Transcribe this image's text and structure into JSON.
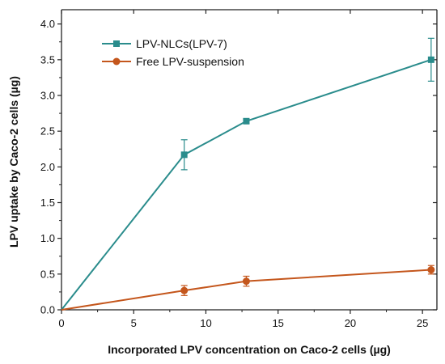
{
  "chart_data": {
    "type": "line",
    "xlabel": "Incorporated LPV concentration on Caco-2 cells (µg)",
    "ylabel": "LPV uptake by Caco-2 cells (µg)",
    "xlim": [
      0,
      26
    ],
    "ylim": [
      0,
      4.2
    ],
    "x_ticks": [
      0,
      5,
      10,
      15,
      20,
      25
    ],
    "y_ticks": [
      0.0,
      0.5,
      1.0,
      1.5,
      2.0,
      2.5,
      3.0,
      3.5,
      4.0
    ],
    "x_tick_labels": [
      "0",
      "5",
      "10",
      "15",
      "20",
      "25"
    ],
    "y_tick_labels": [
      "0.0",
      "0.5",
      "1.0",
      "1.5",
      "2.0",
      "2.5",
      "3.0",
      "3.5",
      "4.0"
    ],
    "grid": false,
    "legend_position": "top-left",
    "series": [
      {
        "name": "LPV-NLCs(LPV-7)",
        "color": "#2a8c8c",
        "marker": "square",
        "x": [
          0,
          8.5,
          12.8,
          25.6
        ],
        "y": [
          0,
          2.17,
          2.64,
          3.5
        ],
        "error": [
          0,
          0.21,
          0.03,
          0.3
        ]
      },
      {
        "name": "Free LPV-suspension",
        "color": "#c4561c",
        "marker": "circle",
        "x": [
          0,
          8.5,
          12.8,
          25.6
        ],
        "y": [
          0,
          0.27,
          0.4,
          0.56
        ],
        "error": [
          0,
          0.07,
          0.07,
          0.06
        ]
      }
    ]
  }
}
